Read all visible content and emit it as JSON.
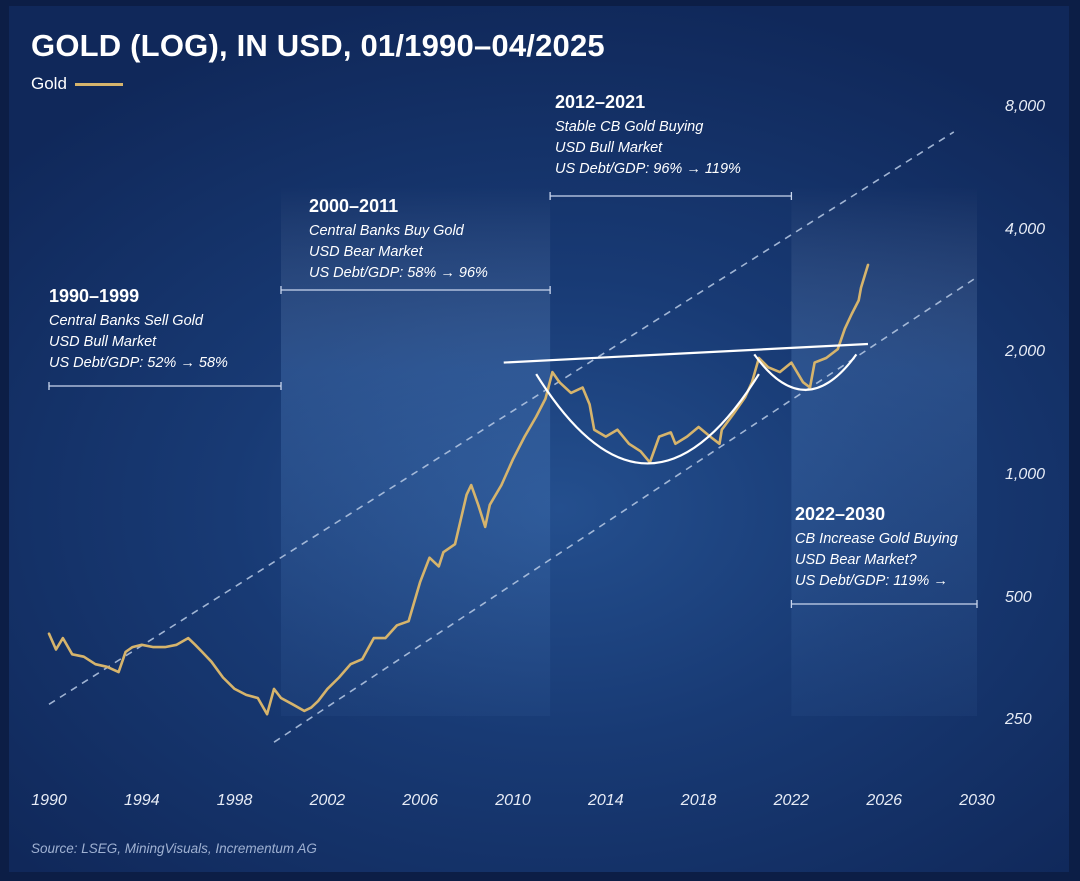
{
  "title": "GOLD (LOG), IN USD, 01/1990–04/2025",
  "legend": {
    "label": "Gold",
    "color": "#d6b46c"
  },
  "source": "Source: LSEG, MiningVisuals, Incrementum AG",
  "periods": [
    {
      "label": "1990–1999",
      "lines": [
        "Central Banks Sell Gold",
        "USD Bull Market",
        "US Debt/GDP: 52% → 58%"
      ],
      "start": 1990,
      "end": 2000
    },
    {
      "label": "2000–2011",
      "lines": [
        "Central Banks Buy Gold",
        "USD Bear Market",
        "US Debt/GDP: 58% → 96%"
      ],
      "start": 2000,
      "end": 2011.6
    },
    {
      "label": "2012–2021",
      "lines": [
        "Stable CB Gold Buying",
        "USD Bull Market",
        "US Debt/GDP: 96% → 119%"
      ],
      "start": 2011.6,
      "end": 2022
    },
    {
      "label": "2022–2030",
      "lines": [
        "CB Increase Gold Buying",
        "USD Bear Market?",
        "US Debt/GDP: 119% →"
      ],
      "start": 2022,
      "end": 2030
    }
  ],
  "chart_data": {
    "type": "line",
    "title": "GOLD (LOG), IN USD, 01/1990–04/2025",
    "yscale": "log",
    "xlim": [
      1990,
      2030
    ],
    "ylim": [
      210,
      8200
    ],
    "xticks": [
      "1990",
      "1994",
      "1998",
      "2002",
      "2006",
      "2010",
      "2014",
      "2018",
      "2022",
      "2026",
      "2030"
    ],
    "yticks": [
      "250",
      "500",
      "1,000",
      "2,000",
      "4,000",
      "8,000"
    ],
    "ytick_values": [
      250,
      500,
      1000,
      2000,
      4000,
      8000
    ],
    "series": [
      {
        "name": "Gold",
        "x": [
          1990.0,
          1990.3,
          1990.6,
          1991.0,
          1991.5,
          1992.0,
          1992.5,
          1993.0,
          1993.3,
          1993.6,
          1994.0,
          1994.5,
          1995.0,
          1995.5,
          1996.0,
          1996.3,
          1996.6,
          1997.0,
          1997.5,
          1998.0,
          1998.5,
          1999.0,
          1999.4,
          1999.7,
          2000.0,
          2000.5,
          2001.0,
          2001.3,
          2001.6,
          2002.0,
          2002.5,
          2003.0,
          2003.5,
          2004.0,
          2004.5,
          2005.0,
          2005.5,
          2006.0,
          2006.4,
          2006.8,
          2007.0,
          2007.5,
          2008.0,
          2008.2,
          2008.5,
          2008.8,
          2009.0,
          2009.5,
          2010.0,
          2010.5,
          2011.0,
          2011.4,
          2011.7,
          2012.0,
          2012.5,
          2013.0,
          2013.3,
          2013.5,
          2014.0,
          2014.5,
          2015.0,
          2015.5,
          2015.9,
          2016.3,
          2016.8,
          2017.0,
          2017.5,
          2018.0,
          2018.5,
          2018.9,
          2019.0,
          2019.5,
          2020.0,
          2020.3,
          2020.6,
          2021.0,
          2021.5,
          2022.0,
          2022.5,
          2022.8,
          2023.0,
          2023.5,
          2024.0,
          2024.3,
          2024.6,
          2024.9,
          2025.0,
          2025.3
        ],
        "y": [
          410,
          375,
          400,
          365,
          360,
          345,
          340,
          330,
          370,
          380,
          385,
          380,
          380,
          385,
          400,
          385,
          370,
          350,
          320,
          300,
          290,
          285,
          260,
          300,
          285,
          275,
          265,
          270,
          280,
          300,
          320,
          345,
          355,
          400,
          400,
          430,
          440,
          550,
          630,
          600,
          650,
          680,
          900,
          950,
          850,
          750,
          850,
          950,
          1100,
          1250,
          1400,
          1550,
          1800,
          1700,
          1600,
          1650,
          1500,
          1300,
          1250,
          1300,
          1200,
          1150,
          1080,
          1250,
          1280,
          1200,
          1250,
          1320,
          1250,
          1200,
          1300,
          1420,
          1560,
          1700,
          1950,
          1850,
          1800,
          1900,
          1700,
          1650,
          1900,
          1950,
          2050,
          2300,
          2500,
          2700,
          2900,
          3300
        ]
      }
    ],
    "annotations": [
      {
        "type": "resistance-line",
        "from": [
          2009.6,
          1900
        ],
        "to": [
          2025.3,
          2110
        ]
      },
      {
        "type": "cup",
        "x_range": [
          2011.0,
          2020.6
        ],
        "low": 1060
      },
      {
        "type": "handle",
        "x_range": [
          2020.4,
          2024.8
        ],
        "low": 1620
      },
      {
        "type": "channel-upper",
        "from": [
          1990,
          275
        ],
        "to": [
          2029,
          7000
        ]
      },
      {
        "type": "channel-lower",
        "from": [
          1999.7,
          222
        ],
        "to": [
          2030,
          3080
        ]
      }
    ]
  }
}
